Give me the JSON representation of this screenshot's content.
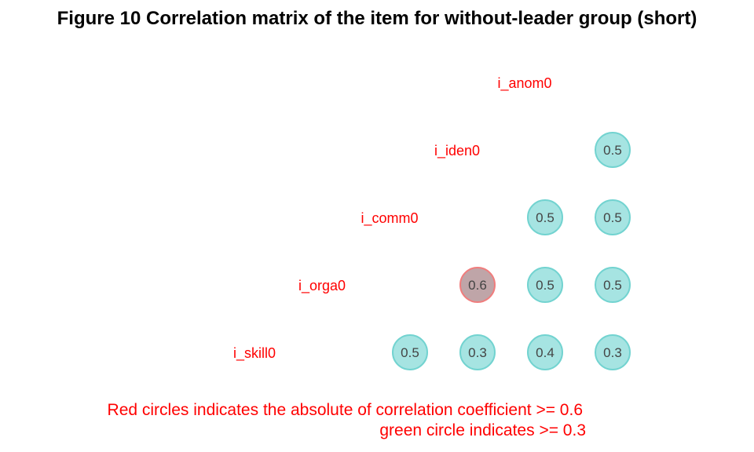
{
  "title": "Figure  10 Correlation matrix of the item for without-leader group (short)",
  "notes": [
    "Red circles indicates the absolute of correlation coefficient >= 0.6",
    "green circle indicates >= 0.3"
  ],
  "colors": {
    "label": "#ff0000",
    "high_fill": "#bfa5a8",
    "high_stroke": "#f07d7d",
    "mid_fill": "#a6e4e2",
    "mid_stroke": "#72d3d0",
    "value_text": "#444444",
    "title": "#000000"
  },
  "chart_data": {
    "type": "correlation-matrix",
    "variables": [
      "i_skill0",
      "i_orga0",
      "i_comm0",
      "i_iden0",
      "i_anom0"
    ],
    "cells": [
      {
        "row": "i_orga0",
        "col": "i_skill0",
        "value": 0.5,
        "label": "0.5"
      },
      {
        "row": "i_comm0",
        "col": "i_skill0",
        "value": 0.3,
        "label": "0.3"
      },
      {
        "row": "i_comm0",
        "col": "i_orga0",
        "value": 0.6,
        "label": "0.6"
      },
      {
        "row": "i_iden0",
        "col": "i_skill0",
        "value": 0.4,
        "label": "0.4"
      },
      {
        "row": "i_iden0",
        "col": "i_orga0",
        "value": 0.5,
        "label": "0.5"
      },
      {
        "row": "i_iden0",
        "col": "i_comm0",
        "value": 0.5,
        "label": "0.5"
      },
      {
        "row": "i_anom0",
        "col": "i_skill0",
        "value": 0.3,
        "label": "0.3"
      },
      {
        "row": "i_anom0",
        "col": "i_orga0",
        "value": 0.5,
        "label": "0.5"
      },
      {
        "row": "i_anom0",
        "col": "i_comm0",
        "value": 0.5,
        "label": "0.5"
      },
      {
        "row": "i_anom0",
        "col": "i_iden0",
        "value": 0.5,
        "label": "0.5"
      }
    ],
    "thresholds": {
      "red": 0.6,
      "green": 0.3
    }
  }
}
